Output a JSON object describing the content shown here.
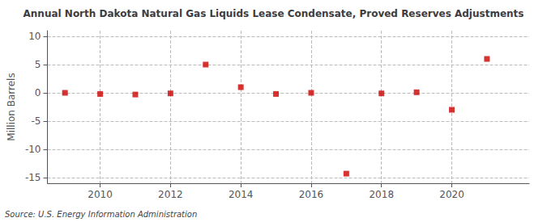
{
  "chart_data": {
    "type": "scatter",
    "title": "Annual North Dakota Natural Gas Liquids Lease Condensate, Proved Reserves Adjustments",
    "ylabel": "Million Barrels",
    "annotation": "Source: U.S. Energy Information Administration",
    "x": [
      2009,
      2010,
      2011,
      2012,
      2013,
      2014,
      2015,
      2016,
      2017,
      2018,
      2019,
      2020,
      2021
    ],
    "values": [
      0.0,
      -0.2,
      -0.3,
      -0.1,
      5.0,
      1.0,
      -0.2,
      0.0,
      -14.3,
      -0.1,
      0.1,
      -3.0,
      6.0
    ],
    "color": "#CC0000",
    "marker": "square",
    "xlim": [
      2008.5,
      2022.2
    ],
    "xticks": [
      2010,
      2012,
      2014,
      2016,
      2018,
      2020
    ],
    "ylim": [
      -16,
      11
    ],
    "yticks": [
      -15,
      -10,
      -5,
      0,
      5,
      10
    ],
    "grid": true
  }
}
